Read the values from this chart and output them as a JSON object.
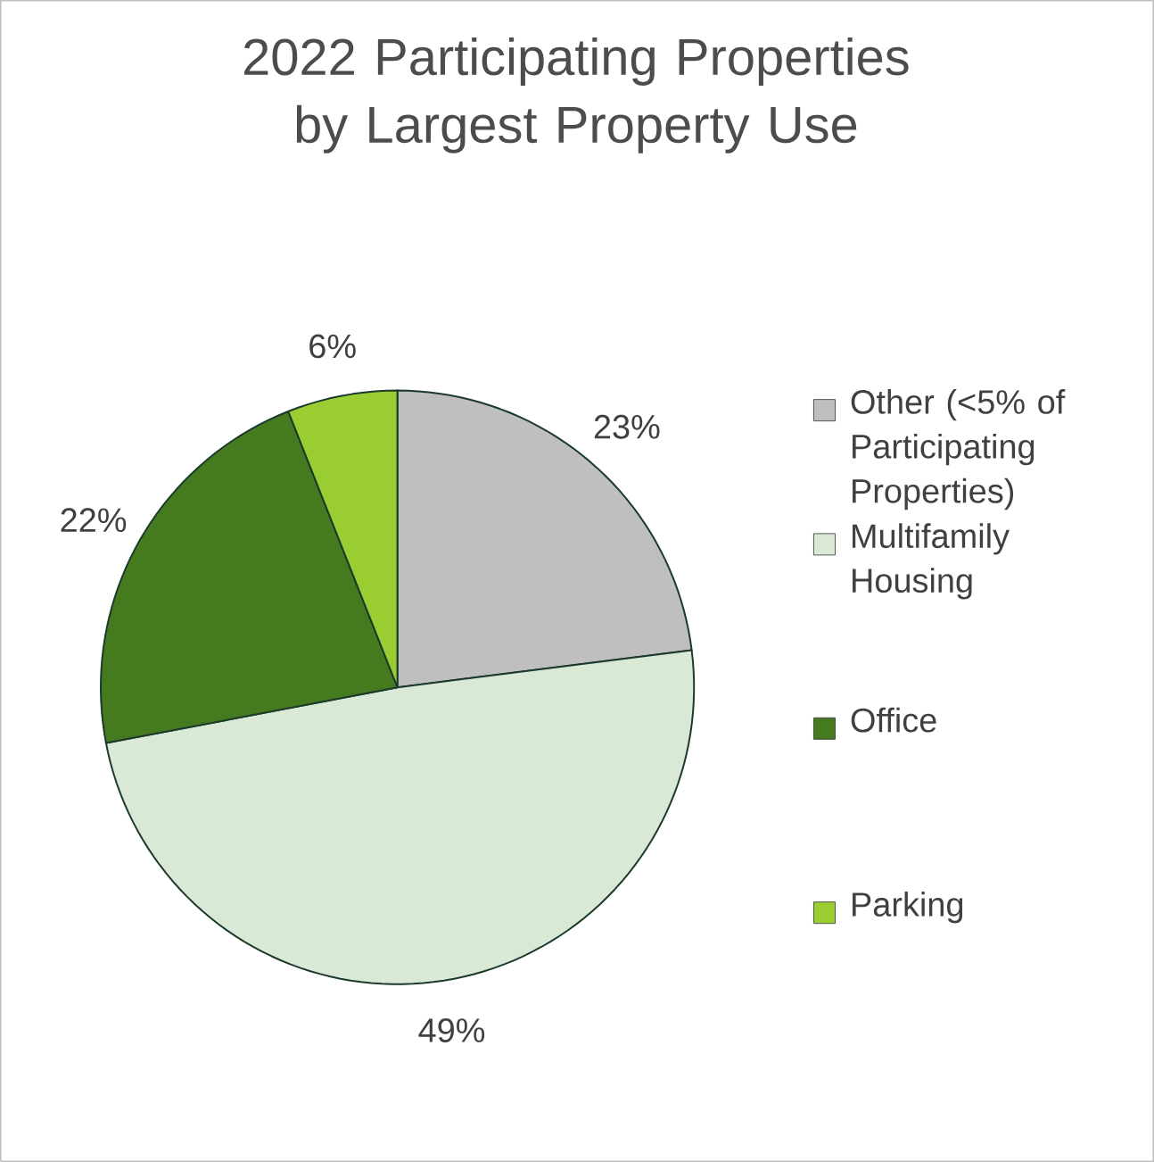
{
  "chart_data": {
    "type": "pie",
    "title": "2022 Participating Properties\nby Largest Property Use",
    "categories": [
      "Other (<5% of Participating Properties)",
      "Multifamily Housing",
      "Office",
      "Parking"
    ],
    "values": [
      23,
      49,
      22,
      6
    ],
    "value_labels": [
      "23%",
      "49%",
      "22%",
      "6%"
    ],
    "colors": [
      "#bfbfbf",
      "#dae8d6",
      "#467a1f",
      "#9acd32"
    ],
    "legend": "right"
  }
}
